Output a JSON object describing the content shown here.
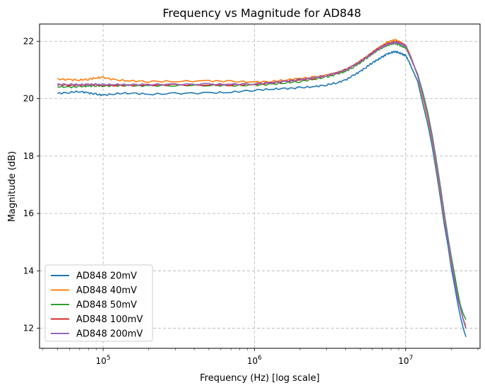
{
  "chart_data": {
    "type": "line",
    "title": "Frequency vs Magnitude for AD848",
    "xlabel": "Frequency (Hz) [log scale]",
    "ylabel": "Magnitude (dB)",
    "xscale": "log",
    "xlim": [
      38000,
      31000000
    ],
    "ylim": [
      11.3,
      22.6
    ],
    "grid": true,
    "grid_style": "dashed",
    "legend_position": "lower-left",
    "x_ticks": [
      {
        "value": 100000,
        "base": "10",
        "exp": "5"
      },
      {
        "value": 1000000,
        "base": "10",
        "exp": "6"
      },
      {
        "value": 10000000,
        "base": "10",
        "exp": "7"
      }
    ],
    "y_ticks": [
      12,
      14,
      16,
      18,
      20,
      22
    ],
    "x": [
      50000,
      60000,
      70000,
      80000,
      90000,
      100000,
      120000,
      150000,
      200000,
      300000,
      500000,
      700000,
      1000000,
      1300000,
      1600000,
      2000000,
      2500000,
      3000000,
      3500000,
      4000000,
      4500000,
      5000000,
      5500000,
      6000000,
      6500000,
      7000000,
      7500000,
      8000000,
      8500000,
      9000000,
      9500000,
      10000000,
      10500000,
      11000000,
      12000000,
      13000000,
      14000000,
      15000000,
      16000000,
      17000000,
      18000000,
      19000000,
      20000000,
      21000000,
      22000000,
      23000000,
      24000000,
      25000000
    ],
    "series": [
      {
        "name": "AD848 20mV",
        "color": "#1f77b4",
        "values": [
          20.18,
          20.22,
          20.25,
          20.2,
          20.15,
          20.12,
          20.17,
          20.2,
          20.15,
          20.18,
          20.2,
          20.22,
          20.3,
          20.33,
          20.35,
          20.38,
          20.42,
          20.48,
          20.55,
          20.65,
          20.8,
          20.95,
          21.1,
          21.25,
          21.35,
          21.45,
          21.55,
          21.6,
          21.65,
          21.6,
          21.55,
          21.5,
          21.3,
          21.05,
          20.6,
          19.8,
          19.1,
          18.3,
          17.4,
          16.5,
          15.6,
          14.9,
          14.1,
          13.5,
          12.9,
          12.4,
          12.0,
          11.7
        ]
      },
      {
        "name": "AD848 40mV",
        "color": "#ff7f0e",
        "values": [
          20.68,
          20.66,
          20.65,
          20.68,
          20.72,
          20.74,
          20.65,
          20.62,
          20.6,
          20.6,
          20.62,
          20.6,
          20.58,
          20.6,
          20.65,
          20.7,
          20.75,
          20.82,
          20.9,
          21.0,
          21.15,
          21.3,
          21.45,
          21.6,
          21.75,
          21.85,
          21.95,
          22.0,
          22.05,
          22.0,
          21.9,
          21.85,
          21.6,
          21.35,
          20.8,
          20.0,
          19.3,
          18.5,
          17.6,
          16.7,
          15.8,
          15.1,
          14.3,
          13.7,
          13.2,
          12.7,
          12.3,
          12.1
        ]
      },
      {
        "name": "AD848 50mV",
        "color": "#2ca02c",
        "values": [
          20.42,
          20.4,
          20.42,
          20.44,
          20.45,
          20.44,
          20.45,
          20.45,
          20.45,
          20.46,
          20.47,
          20.45,
          20.47,
          20.5,
          20.55,
          20.6,
          20.68,
          20.75,
          20.85,
          20.95,
          21.1,
          21.25,
          21.4,
          21.55,
          21.68,
          21.78,
          21.85,
          21.9,
          21.92,
          21.88,
          21.82,
          21.78,
          21.55,
          21.3,
          20.85,
          20.2,
          19.5,
          18.7,
          17.8,
          16.9,
          16.0,
          15.2,
          14.5,
          13.9,
          13.3,
          12.8,
          12.5,
          12.3
        ]
      },
      {
        "name": "AD848 100mV",
        "color": "#d62728",
        "values": [
          20.48,
          20.47,
          20.47,
          20.48,
          20.48,
          20.47,
          20.47,
          20.47,
          20.47,
          20.48,
          20.48,
          20.48,
          20.5,
          20.55,
          20.6,
          20.65,
          20.72,
          20.8,
          20.9,
          21.0,
          21.15,
          21.3,
          21.45,
          21.6,
          21.72,
          21.82,
          21.9,
          21.95,
          21.98,
          21.95,
          21.9,
          21.85,
          21.6,
          21.35,
          20.8,
          20.1,
          19.4,
          18.6,
          17.7,
          16.8,
          15.9,
          15.1,
          14.4,
          13.7,
          13.1,
          12.7,
          12.3,
          12.0
        ]
      },
      {
        "name": "AD848 200mV",
        "color": "#9467bd",
        "values": [
          20.5,
          20.5,
          20.49,
          20.49,
          20.49,
          20.49,
          20.49,
          20.49,
          20.49,
          20.5,
          20.5,
          20.5,
          20.52,
          20.56,
          20.6,
          20.66,
          20.73,
          20.8,
          20.9,
          21.0,
          21.14,
          21.28,
          21.43,
          21.57,
          21.7,
          21.8,
          21.88,
          21.93,
          21.96,
          21.93,
          21.88,
          21.83,
          21.58,
          21.33,
          20.8,
          20.1,
          19.4,
          18.6,
          17.7,
          16.8,
          15.9,
          15.1,
          14.4,
          13.7,
          13.1,
          12.7,
          12.3,
          12.0
        ]
      }
    ]
  }
}
